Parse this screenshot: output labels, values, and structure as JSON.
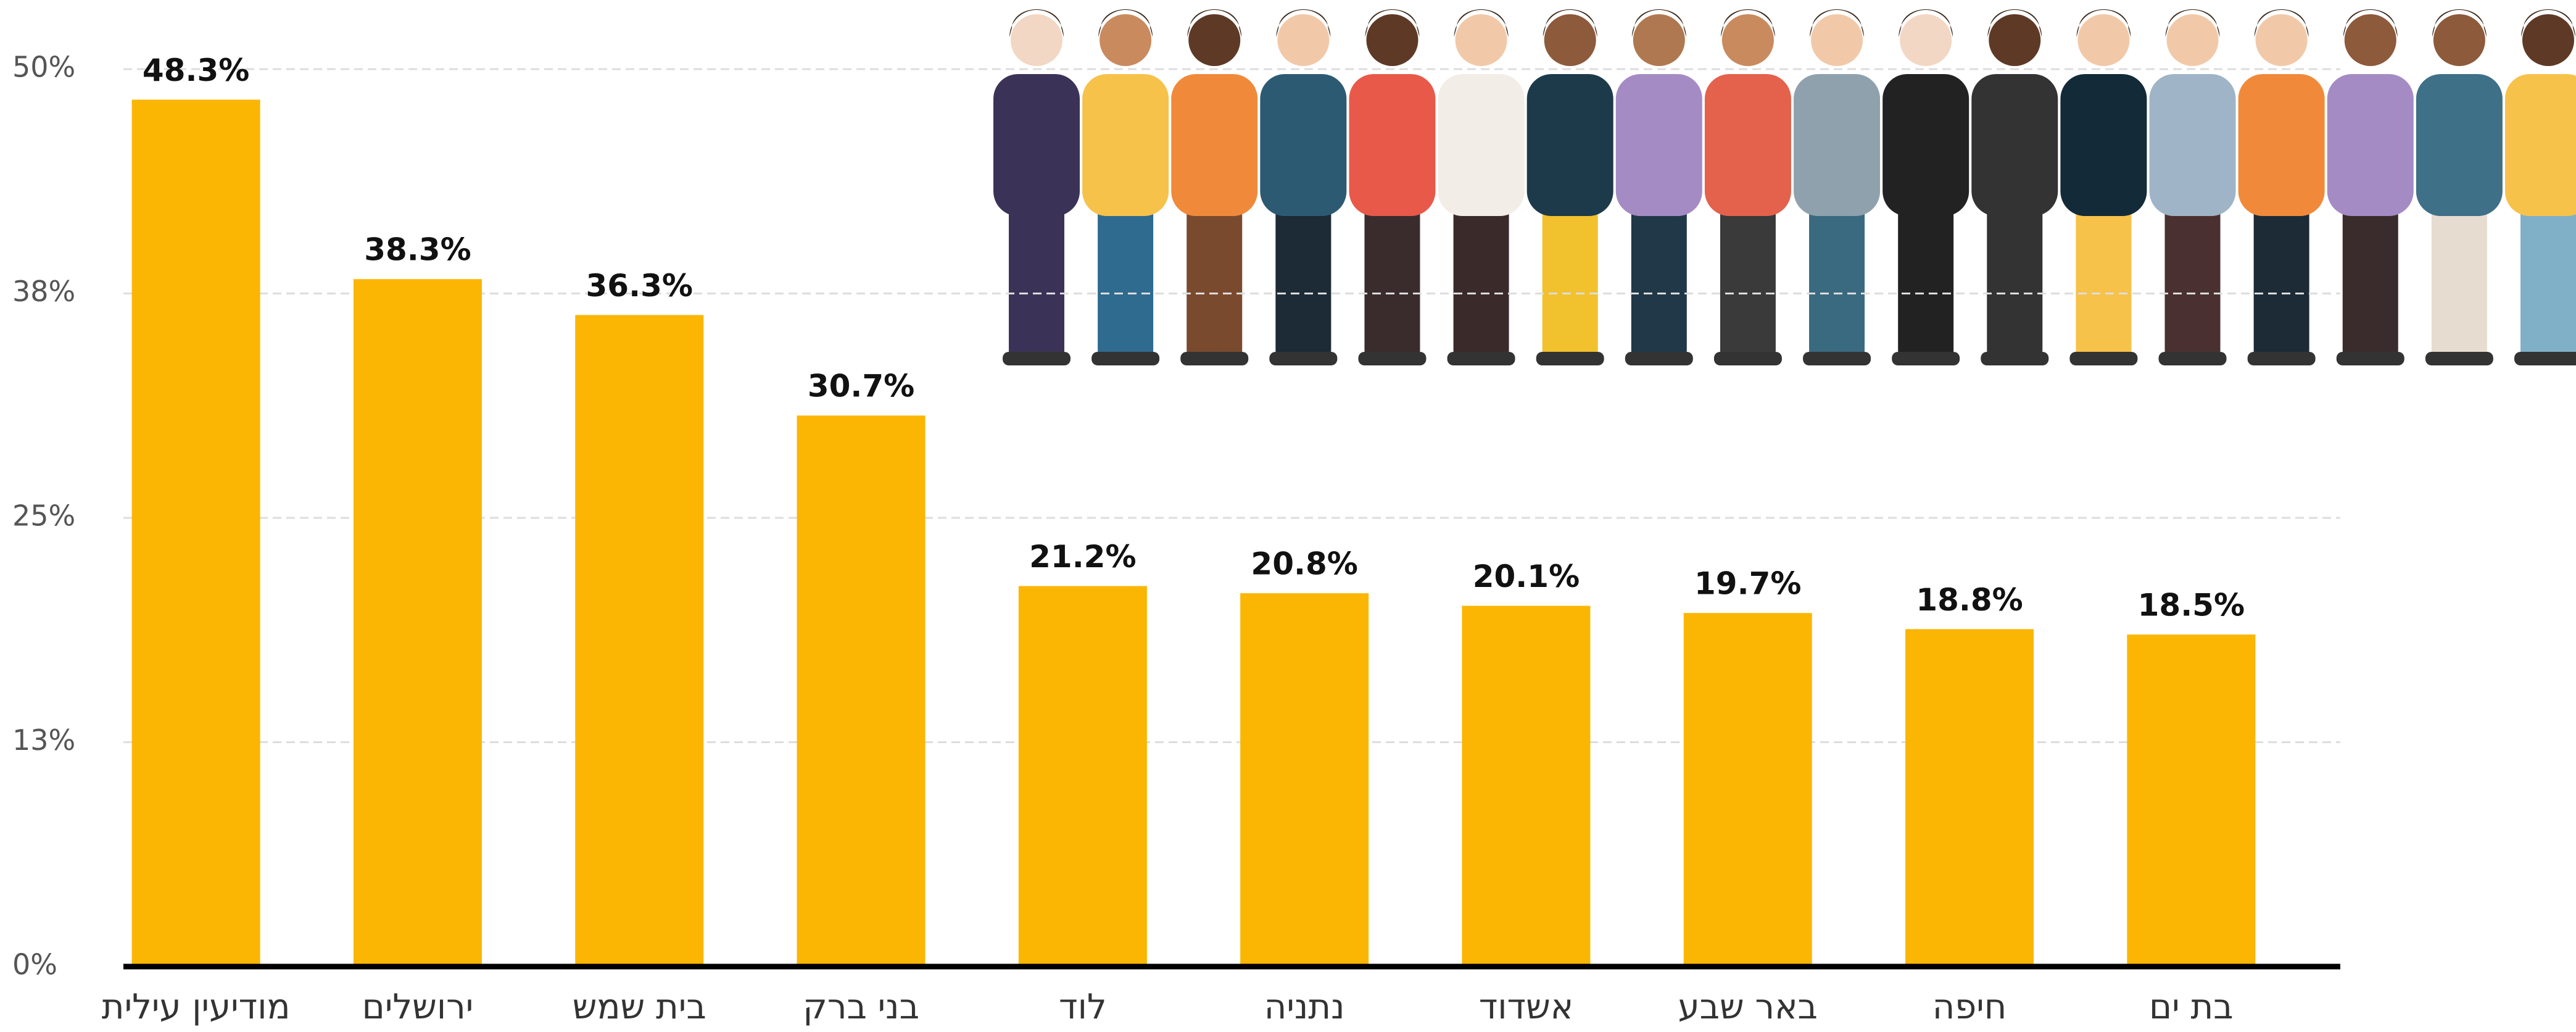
{
  "chart_data": {
    "type": "bar",
    "categories": [
      "מודיעין עילית",
      "ירושלים",
      "בית שמש",
      "בני ברק",
      "לוד",
      "נתניה",
      "אשדוד",
      "באר שבע",
      "חיפה",
      "בת ים"
    ],
    "values": [
      48.3,
      38.3,
      36.3,
      30.7,
      21.2,
      20.8,
      20.1,
      19.7,
      18.8,
      18.5
    ],
    "value_labels": [
      "48.3%",
      "38.3%",
      "36.3%",
      "30.7%",
      "21.2%",
      "20.8%",
      "20.1%",
      "19.7%",
      "18.8%",
      "18.5%"
    ],
    "color": "#fbb604",
    "ylim": [
      0,
      50
    ],
    "yticks": [
      {
        "value": 0,
        "label": "0%"
      },
      {
        "value": 12.5,
        "label": "13%"
      },
      {
        "value": 25,
        "label": "25%"
      },
      {
        "value": 37.5,
        "label": "38%"
      },
      {
        "value": 50,
        "label": "50%"
      }
    ],
    "grid": true
  }
}
